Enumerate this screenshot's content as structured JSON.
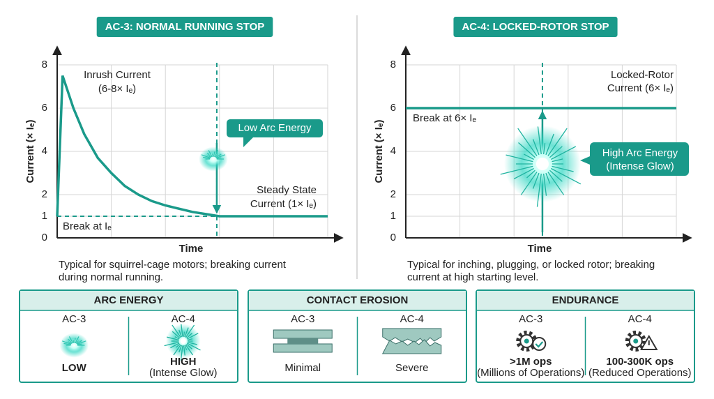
{
  "chart_data": [
    {
      "type": "line",
      "title": "AC-3: NORMAL RUNNING STOP",
      "ylabel": "Current (× Iₑ)",
      "xlabel": "Time",
      "x": [
        0,
        0.02,
        0.06,
        0.1,
        0.15,
        0.2,
        0.25,
        0.3,
        0.35,
        0.4,
        0.5,
        0.6,
        0.7,
        0.8,
        1
      ],
      "values": [
        1,
        7.5,
        6.0,
        4.8,
        3.7,
        3.0,
        2.4,
        2.0,
        1.7,
        1.5,
        1.2,
        1.0,
        1.0,
        1.0,
        1.0
      ],
      "color": "#1a9a8a",
      "xlim": [
        0,
        1
      ],
      "ylim": [
        0,
        8
      ],
      "yticks": [
        0,
        1,
        2,
        4,
        6,
        8
      ],
      "grid": true,
      "break_time": 0.59,
      "break_current": 1,
      "peak_label": [
        "Inrush Current",
        "(6-8× Iₑ)"
      ],
      "arc_label": [
        "Low Arc Energy"
      ],
      "level_label": [
        "Steady State",
        "Current (1× Iₑ)"
      ],
      "break_label": "Break at Iₑ",
      "caption": [
        "Typical for squirrel-cage motors; breaking current",
        "during normal running."
      ]
    },
    {
      "type": "line",
      "title": "AC-4: LOCKED-ROTOR STOP",
      "ylabel": "Current (× Iₑ)",
      "xlabel": "Time",
      "x": [
        0,
        1
      ],
      "values": [
        6,
        6
      ],
      "color": "#1a9a8a",
      "xlim": [
        0,
        1
      ],
      "ylim": [
        0,
        8
      ],
      "yticks": [
        0,
        1,
        2,
        4,
        6,
        8
      ],
      "grid": true,
      "break_time": 0.505,
      "break_current": 6,
      "level_label": [
        "Locked-Rotor",
        "Current (6× Iₑ)"
      ],
      "arc_label": [
        "High Arc Energy",
        "(Intense Glow)"
      ],
      "break_label": "Break at 6× Iₑ",
      "caption": [
        "Typical for inching, plugging, or locked rotor; breaking",
        "current at high starting level."
      ]
    }
  ],
  "panels": [
    {
      "title": "ARC ENERGY",
      "columns": [
        {
          "label": "AC-3",
          "level": "LOW"
        },
        {
          "label": "AC-4",
          "level": "HIGH",
          "note": "(Intense Glow)"
        }
      ]
    },
    {
      "title": "CONTACT EROSION",
      "columns": [
        {
          "label": "AC-3",
          "level": "Minimal"
        },
        {
          "label": "AC-4",
          "level": "Severe"
        }
      ]
    },
    {
      "title": "ENDURANCE",
      "columns": [
        {
          "label": "AC-3",
          "level": ">1M ops",
          "note": "(Millions of Operations)"
        },
        {
          "label": "AC-4",
          "level": "100-300K ops",
          "note": "(Reduced Operations)"
        }
      ]
    }
  ]
}
